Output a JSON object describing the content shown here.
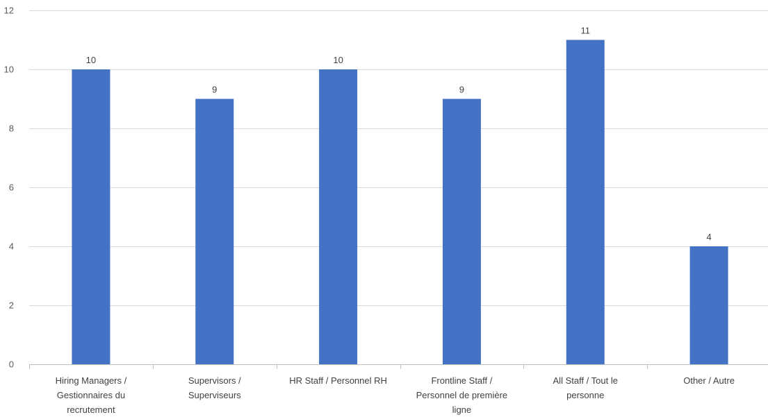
{
  "chart_data": {
    "type": "bar",
    "title": "",
    "xlabel": "",
    "ylabel": "",
    "categories": [
      [
        "Hiring Managers /",
        "Gestionnaires du",
        "recrutement"
      ],
      [
        "Supervisors /",
        "Superviseurs"
      ],
      [
        "HR Staff / Personnel RH"
      ],
      [
        "Frontline Staff /",
        "Personnel de première",
        "ligne"
      ],
      [
        "All Staff / Tout le",
        "personne"
      ],
      [
        "Other / Autre"
      ]
    ],
    "values": [
      10,
      9,
      10,
      9,
      11,
      4
    ],
    "data_labels": [
      "10",
      "9",
      "10",
      "9",
      "11",
      "4"
    ],
    "ylim": [
      0,
      12
    ],
    "yticks": [
      0,
      2,
      4,
      6,
      8,
      10,
      12
    ],
    "grid": true,
    "legend": "none",
    "colors": {
      "bar": "#4472c4"
    }
  }
}
